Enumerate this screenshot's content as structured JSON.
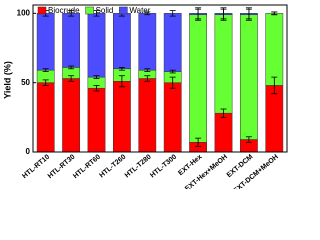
{
  "chart_data": {
    "type": "stacked-bar",
    "y_label": "Yield (%)",
    "categories": [
      "HTL-RT10",
      "HTL-RT30",
      "HTL-RT60",
      "HTL-T260",
      "HTL-T280",
      "HTL-T300",
      "EXT-Hex",
      "EXT-Hex+MeOH",
      "EXT-DCM",
      "EXT-DCM+MeOH"
    ],
    "series": [
      {
        "name": "Biocrude",
        "color": "#ff0000",
        "values": [
          50,
          53,
          46,
          51,
          53,
          50,
          7,
          28,
          9,
          48
        ],
        "errors": [
          2,
          2,
          2,
          4,
          2,
          4,
          3,
          3,
          2,
          6
        ]
      },
      {
        "name": "Solid",
        "color": "#66ff33",
        "values": [
          9,
          8,
          8,
          9,
          6,
          8,
          92,
          71,
          90,
          52
        ],
        "errors": [
          1,
          1,
          1,
          1,
          1,
          1,
          4,
          4,
          4,
          1
        ]
      },
      {
        "name": "Water",
        "color": "#4d4dff",
        "values": [
          41,
          39,
          46,
          40,
          41,
          42,
          1,
          1,
          1,
          0
        ],
        "errors": [
          2,
          2,
          2,
          2,
          1,
          2,
          4,
          4,
          4,
          1
        ]
      }
    ],
    "ylim": [
      0,
      106
    ],
    "yticks": [
      0,
      50,
      100
    ],
    "legend": "top-left"
  }
}
